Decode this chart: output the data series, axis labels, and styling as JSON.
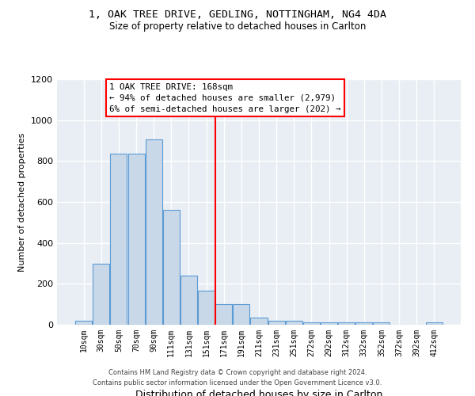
{
  "title_line1": "1, OAK TREE DRIVE, GEDLING, NOTTINGHAM, NG4 4DA",
  "title_line2": "Size of property relative to detached houses in Carlton",
  "xlabel": "Distribution of detached houses by size in Carlton",
  "ylabel": "Number of detached properties",
  "bar_labels": [
    "10sqm",
    "30sqm",
    "50sqm",
    "70sqm",
    "90sqm",
    "111sqm",
    "131sqm",
    "151sqm",
    "171sqm",
    "191sqm",
    "211sqm",
    "231sqm",
    "251sqm",
    "272sqm",
    "292sqm",
    "312sqm",
    "332sqm",
    "352sqm",
    "372sqm",
    "392sqm",
    "412sqm"
  ],
  "bar_values": [
    20,
    300,
    835,
    835,
    905,
    560,
    240,
    165,
    100,
    100,
    35,
    20,
    20,
    10,
    10,
    10,
    10,
    10,
    0,
    0,
    10
  ],
  "bar_color": "#c8d8e8",
  "bar_edge_color": "#5b9bd5",
  "vline_color": "red",
  "annotation_text": "1 OAK TREE DRIVE: 168sqm\n← 94% of detached houses are smaller (2,979)\n6% of semi-detached houses are larger (202) →",
  "annotation_box_color": "red",
  "ylim": [
    0,
    1200
  ],
  "yticks": [
    0,
    200,
    400,
    600,
    800,
    1000,
    1200
  ],
  "background_color": "#e8eef4",
  "grid_color": "white",
  "footer_line1": "Contains HM Land Registry data © Crown copyright and database right 2024.",
  "footer_line2": "Contains public sector information licensed under the Open Government Licence v3.0."
}
